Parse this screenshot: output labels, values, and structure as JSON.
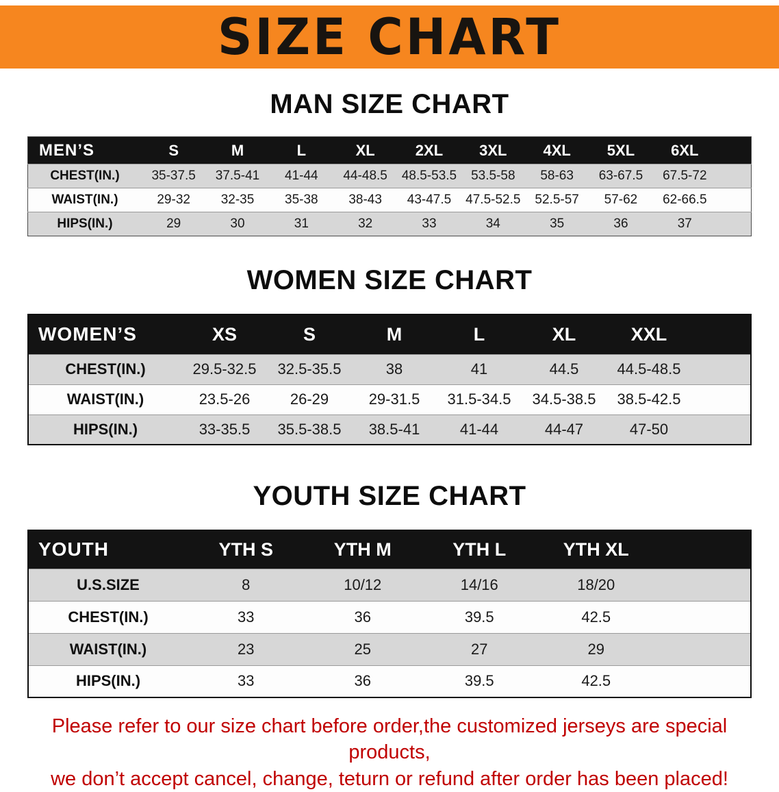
{
  "banner": {
    "title": "SIZE CHART",
    "bg_color": "#F6861F"
  },
  "headings": {
    "men": "MAN SIZE CHART",
    "women": "WOMEN SIZE CHART",
    "youth": "YOUTH SIZE CHART"
  },
  "tables": {
    "men": {
      "label": "MEN’S",
      "header": [
        "S",
        "M",
        "L",
        "XL",
        "2XL",
        "3XL",
        "4XL",
        "5XL",
        "6XL"
      ],
      "rows": [
        {
          "label": "CHEST(IN.)",
          "values": [
            "35-37.5",
            "37.5-41",
            "41-44",
            "44-48.5",
            "48.5-53.5",
            "53.5-58",
            "58-63",
            "63-67.5",
            "67.5-72"
          ]
        },
        {
          "label": "WAIST(IN.)",
          "values": [
            "29-32",
            "32-35",
            "35-38",
            "38-43",
            "43-47.5",
            "47.5-52.5",
            "52.5-57",
            "57-62",
            "62-66.5"
          ]
        },
        {
          "label": "HIPS(IN.)",
          "values": [
            "29",
            "30",
            "31",
            "32",
            "33",
            "34",
            "35",
            "36",
            "37"
          ]
        }
      ]
    },
    "women": {
      "label": "WOMEN’S",
      "header": [
        "XS",
        "S",
        "M",
        "L",
        "XL",
        "XXL"
      ],
      "rows": [
        {
          "label": "CHEST(IN.)",
          "values": [
            "29.5-32.5",
            "32.5-35.5",
            "38",
            "41",
            "44.5",
            "44.5-48.5"
          ]
        },
        {
          "label": "WAIST(IN.)",
          "values": [
            "23.5-26",
            "26-29",
            "29-31.5",
            "31.5-34.5",
            "34.5-38.5",
            "38.5-42.5"
          ]
        },
        {
          "label": "HIPS(IN.)",
          "values": [
            "33-35.5",
            "35.5-38.5",
            "38.5-41",
            "41-44",
            "44-47",
            "47-50"
          ]
        }
      ]
    },
    "youth": {
      "label": "YOUTH",
      "header": [
        "YTH S",
        "YTH M",
        "YTH L",
        "YTH XL"
      ],
      "rows": [
        {
          "label": "U.S.SIZE",
          "values": [
            "8",
            "10/12",
            "14/16",
            "18/20"
          ]
        },
        {
          "label": "CHEST(IN.)",
          "values": [
            "33",
            "36",
            "39.5",
            "42.5"
          ]
        },
        {
          "label": "WAIST(IN.)",
          "values": [
            "23",
            "25",
            "27",
            "29"
          ]
        },
        {
          "label": "HIPS(IN.)",
          "values": [
            "33",
            "36",
            "39.5",
            "42.5"
          ]
        }
      ]
    }
  },
  "disclaimer": {
    "line1": "Please refer to our size chart before order,the customized jerseys are special products,",
    "line2": "we don’t accept cancel, change, teturn or refund after order has been placed!",
    "color": "#C00000"
  }
}
